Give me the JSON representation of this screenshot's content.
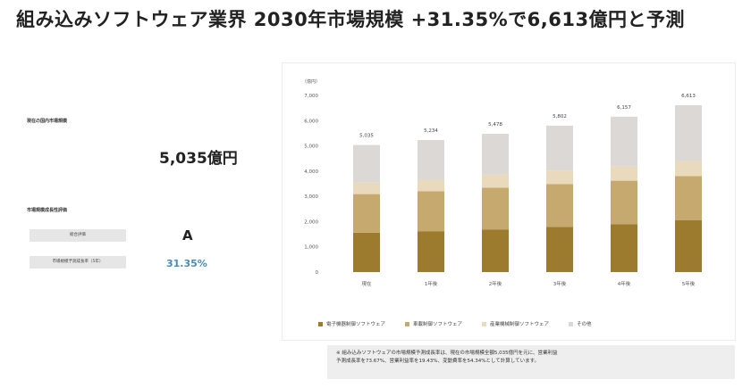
{
  "headline": "組み込みソフトウェア業界 2030年市場規模 +31.35%で6,613億円と予測",
  "left": {
    "market_label": "現在の国内市場規模",
    "market_value": "5,035億円",
    "eval_label": "市場規模成長性評価",
    "overall_label": "総合評価",
    "overall_grade": "A",
    "growth_label": "市場規模予測成長率（5年）",
    "growth_value": "31.35%"
  },
  "note": {
    "line1": "※ 組み込みソフトウェアの市場規模予測成長率は、現在の市場規模全額5,035億円を元に、営業利益",
    "line2": "予測成長率を73.67%、営業利益率を19.43%、変動費率を54.34%として計算しています。"
  },
  "colors": {
    "s1": "#9c7a2e",
    "s2": "#c6a96e",
    "s3": "#e9d9bd",
    "s4": "#dcd8d6",
    "accent": "#4a8bb7"
  },
  "chart_data": {
    "type": "bar",
    "stacked": true,
    "y_unit_label": "（億円）",
    "ylim": [
      0,
      7000
    ],
    "yticks": [
      "0",
      "1,000",
      "2,000",
      "3,000",
      "4,000",
      "5,000",
      "6,000",
      "7,000"
    ],
    "ytick_values": [
      0,
      1000,
      2000,
      3000,
      4000,
      5000,
      6000,
      7000
    ],
    "categories": [
      "現在",
      "1年後",
      "2年後",
      "3年後",
      "4年後",
      "5年後"
    ],
    "totals": [
      5035,
      5234,
      5478,
      5802,
      6157,
      6613
    ],
    "total_labels": [
      "5,035",
      "5,234",
      "5,478",
      "5,802",
      "6,157",
      "6,613"
    ],
    "series": [
      {
        "name": "電子機器制御ソフトウェア",
        "values": [
          1560,
          1620,
          1690,
          1790,
          1900,
          2050
        ]
      },
      {
        "name": "車載制御ソフトウェア",
        "values": [
          1530,
          1580,
          1650,
          1700,
          1720,
          1750
        ]
      },
      {
        "name": "産業機械制御ソフトウェア",
        "values": [
          450,
          460,
          520,
          530,
          560,
          600
        ]
      },
      {
        "name": "その他",
        "values": [
          1495,
          1574,
          1618,
          1782,
          1977,
          2213
        ]
      }
    ],
    "grid": false,
    "legend_position": "bottom"
  }
}
